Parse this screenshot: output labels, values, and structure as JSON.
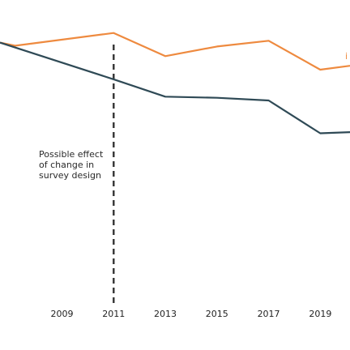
{
  "chart_data": {
    "type": "line",
    "title": "",
    "xlabel": "",
    "ylabel": "",
    "x_ticks": [
      "2009",
      "2011",
      "2013",
      "2015",
      "2017",
      "2019"
    ],
    "xlim": [
      2006.6,
      2020.15
    ],
    "ylim": [
      0,
      100
    ],
    "series": [
      {
        "label": "i",
        "color": "#ee8a3f",
        "points": [
          {
            "x": 2006.6,
            "y": 86
          },
          {
            "x": 2007.2,
            "y": 85.2
          },
          {
            "x": 2011.0,
            "y": 88.5
          },
          {
            "x": 2013.0,
            "y": 82.5
          },
          {
            "x": 2015.0,
            "y": 85
          },
          {
            "x": 2017.0,
            "y": 86.5
          },
          {
            "x": 2019.0,
            "y": 79
          },
          {
            "x": 2020.15,
            "y": 80
          }
        ]
      },
      {
        "label": "",
        "color": "#2f4a56",
        "points": [
          {
            "x": 2006.6,
            "y": 86
          },
          {
            "x": 2011.0,
            "y": 76.5
          },
          {
            "x": 2013.0,
            "y": 72
          },
          {
            "x": 2015.0,
            "y": 71.7
          },
          {
            "x": 2017.0,
            "y": 71
          },
          {
            "x": 2019.0,
            "y": 62.5
          },
          {
            "x": 2020.15,
            "y": 62.8
          }
        ]
      }
    ],
    "reference_line": {
      "x": 2011.0,
      "style": "dashed",
      "color": "#333333",
      "annotation": [
        "Possible effect",
        "of change in",
        "survey design"
      ]
    },
    "grid": false,
    "legend": "none"
  }
}
